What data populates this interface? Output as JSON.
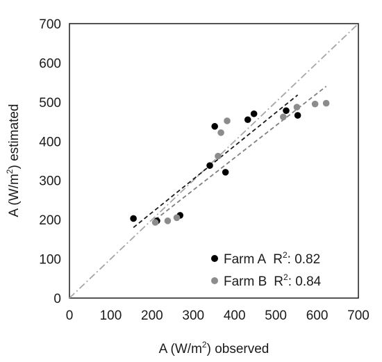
{
  "chart_data": {
    "type": "scatter",
    "xlim": [
      0,
      700
    ],
    "ylim": [
      0,
      700
    ],
    "x_ticks": [
      0,
      100,
      200,
      300,
      400,
      500,
      600,
      700
    ],
    "y_ticks": [
      0,
      100,
      200,
      300,
      400,
      500,
      600,
      700
    ],
    "xlabel": {
      "pre": "A (W/m",
      "sup": "2",
      "post": ") observed"
    },
    "ylabel": {
      "pre": "A (W/m",
      "sup": "2",
      "post": ") estimated"
    },
    "grid": false,
    "legend_position": "bottom-right",
    "identity_line": {
      "from": [
        0,
        0
      ],
      "to": [
        700,
        700
      ],
      "color": "#a6a6a6"
    },
    "series": [
      {
        "name": "Farm A",
        "r2_label": "R",
        "r2_sup": "2",
        "r2_value": ": 0.82",
        "color": "#000000",
        "points": [
          [
            155,
            203
          ],
          [
            212,
            197
          ],
          [
            268,
            211
          ],
          [
            340,
            338
          ],
          [
            352,
            438
          ],
          [
            378,
            321
          ],
          [
            432,
            455
          ],
          [
            447,
            470
          ],
          [
            525,
            478
          ],
          [
            553,
            466
          ]
        ],
        "trend": {
          "from": [
            155,
            180
          ],
          "to": [
            553,
            518
          ],
          "color": "#1a1a1a"
        }
      },
      {
        "name": "Farm B",
        "r2_label": "R",
        "r2_sup": "2",
        "r2_value": ": 0.84",
        "color": "#8c8c8c",
        "points": [
          [
            208,
            193
          ],
          [
            238,
            197
          ],
          [
            260,
            205
          ],
          [
            360,
            362
          ],
          [
            367,
            422
          ],
          [
            382,
            452
          ],
          [
            518,
            462
          ],
          [
            551,
            487
          ],
          [
            595,
            495
          ],
          [
            622,
            497
          ]
        ],
        "trend": {
          "from": [
            208,
            200
          ],
          "to": [
            622,
            540
          ],
          "color": "#7f7f7f"
        }
      }
    ]
  }
}
